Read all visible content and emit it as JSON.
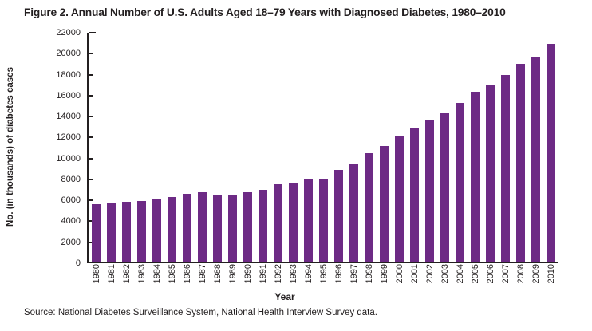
{
  "source_note": "Source: National Diabetes Surveillance System, National Health Interview Survey data.",
  "colors": {
    "bar": "#6d2a85",
    "axis": "#231f20",
    "background": "#ffffff"
  },
  "chart_data": {
    "type": "bar",
    "title": "Figure 2. Annual Number of U.S. Adults Aged 18–79 Years with Diagnosed Diabetes, 1980–2010",
    "xlabel": "Year",
    "ylabel": "No. (in thousands) of diabetes cases",
    "ylim": [
      0,
      22000
    ],
    "ytick_step": 2000,
    "grid": false,
    "legend": null,
    "categories": [
      "1980",
      "1981",
      "1982",
      "1983",
      "1984",
      "1985",
      "1986",
      "1987",
      "1988",
      "1989",
      "1990",
      "1991",
      "1992",
      "1993",
      "1994",
      "1995",
      "1996",
      "1997",
      "1998",
      "1999",
      "2000",
      "2001",
      "2002",
      "2003",
      "2004",
      "2005",
      "2006",
      "2007",
      "2008",
      "2009",
      "2010"
    ],
    "values": [
      5530,
      5620,
      5770,
      5810,
      5960,
      6230,
      6510,
      6640,
      6440,
      6380,
      6660,
      6900,
      7400,
      7580,
      7990,
      7990,
      8790,
      9400,
      10450,
      11140,
      12050,
      12900,
      13630,
      14270,
      15250,
      16320,
      16960,
      17930,
      19010,
      19680,
      20900
    ]
  }
}
